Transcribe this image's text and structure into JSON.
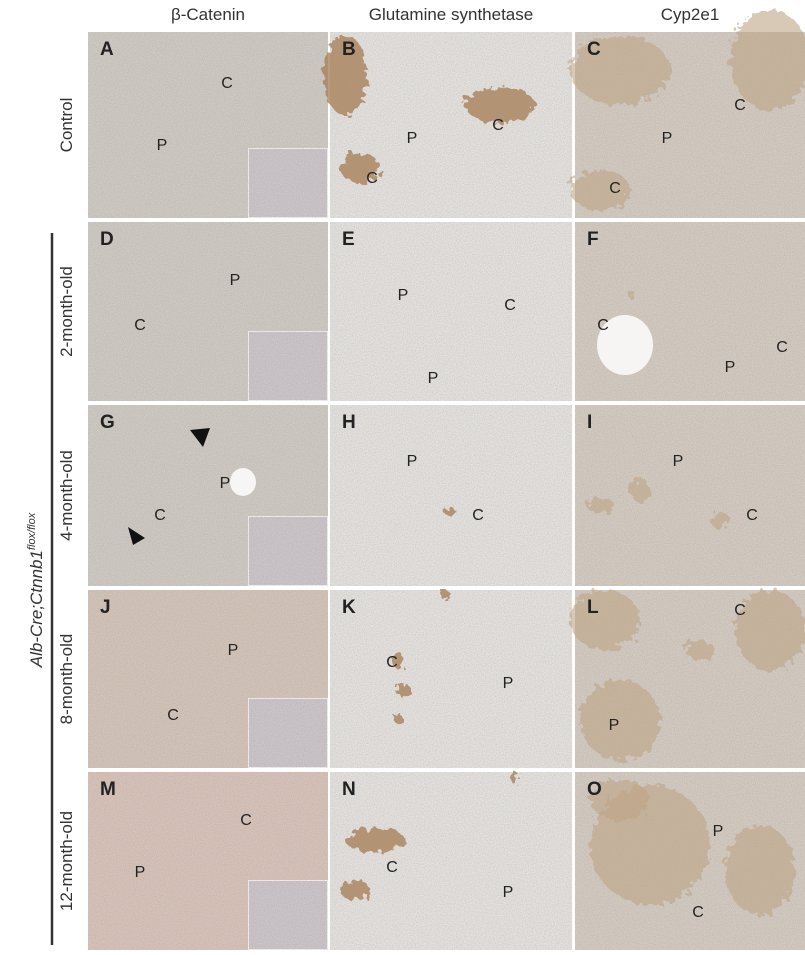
{
  "columns": [
    "β-Catenin",
    "Glutamine synthetase",
    "Cyp2e1"
  ],
  "rows": [
    "Control",
    "2-month-old",
    "4-month-old",
    "8-month-old",
    "12-month-old"
  ],
  "genotype": {
    "text": "Alb-Cre;Ctnnb1",
    "superscript": "flox/flox"
  },
  "panels": [
    {
      "letter": "A",
      "labels": [
        "C",
        "P"
      ]
    },
    {
      "letter": "B",
      "labels": [
        "C",
        "P",
        "C"
      ]
    },
    {
      "letter": "C",
      "labels": [
        "C",
        "P",
        "C"
      ]
    },
    {
      "letter": "D",
      "labels": [
        "P",
        "C"
      ]
    },
    {
      "letter": "E",
      "labels": [
        "P",
        "C",
        "P"
      ]
    },
    {
      "letter": "F",
      "labels": [
        "C",
        "C",
        "P"
      ]
    },
    {
      "letter": "G",
      "labels": [
        "P",
        "C"
      ]
    },
    {
      "letter": "H",
      "labels": [
        "P",
        "C"
      ]
    },
    {
      "letter": "I",
      "labels": [
        "P",
        "C"
      ]
    },
    {
      "letter": "J",
      "labels": [
        "P",
        "C"
      ]
    },
    {
      "letter": "K",
      "labels": [
        "C",
        "P"
      ]
    },
    {
      "letter": "L",
      "labels": [
        "C",
        "P"
      ]
    },
    {
      "letter": "M",
      "labels": [
        "C",
        "P"
      ]
    },
    {
      "letter": "N",
      "labels": [
        "C",
        "P"
      ]
    },
    {
      "letter": "O",
      "labels": [
        "P",
        "C"
      ]
    }
  ]
}
